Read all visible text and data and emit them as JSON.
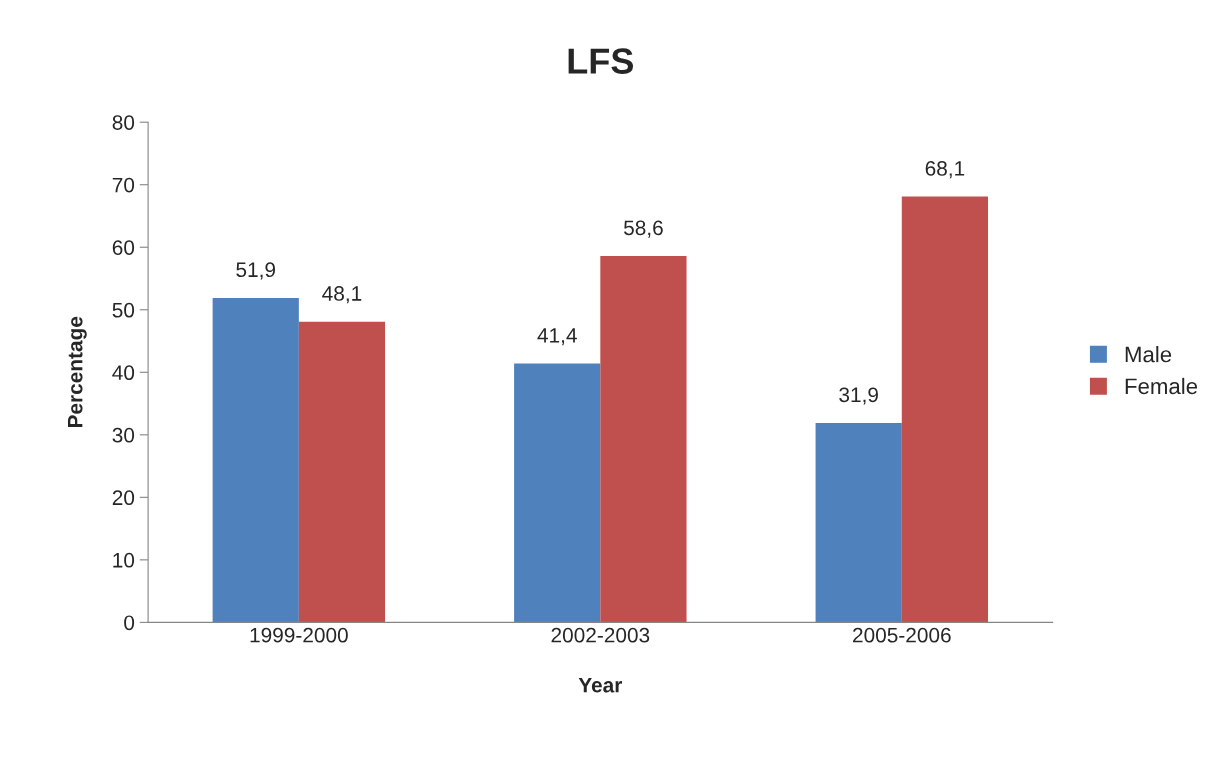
{
  "chart_data": {
    "type": "bar",
    "title": "LFS",
    "xlabel": "Year",
    "ylabel": "Percentage",
    "categories": [
      "1999-2000",
      "2002-2003",
      "2005-2006"
    ],
    "series": [
      {
        "name": "Male",
        "color": "#4f81bd",
        "values": [
          51.9,
          41.4,
          31.9
        ],
        "value_labels": [
          "51,9",
          "41,4",
          "31,9"
        ]
      },
      {
        "name": "Female",
        "color": "#c0504d",
        "values": [
          48.1,
          58.6,
          68.1
        ],
        "value_labels": [
          "48,1",
          "58,6",
          "68,1"
        ]
      }
    ],
    "ylim": [
      0,
      80
    ],
    "yticks": [
      0,
      10,
      20,
      30,
      40,
      50,
      60,
      70,
      80
    ],
    "grid": false,
    "legend": "right"
  }
}
